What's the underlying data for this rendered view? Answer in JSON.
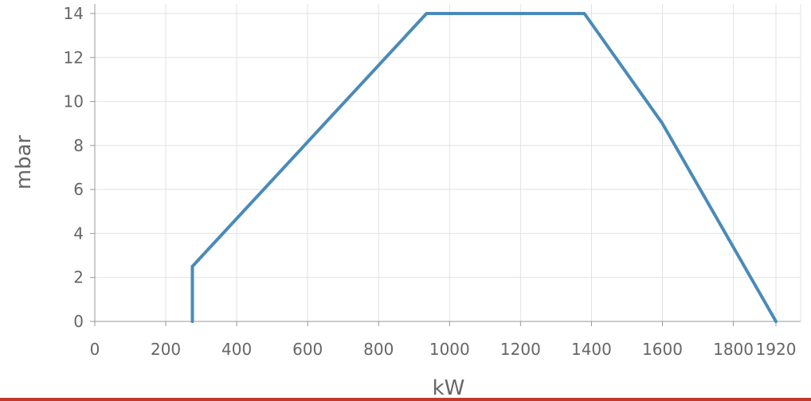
{
  "chart_data": {
    "type": "line",
    "title": "",
    "xlabel": "kW",
    "ylabel": "mbar",
    "xlim": [
      0,
      1920
    ],
    "ylim": [
      0,
      14
    ],
    "x_ticks": [
      "0",
      "200",
      "400",
      "600",
      "800",
      "1000",
      "1200",
      "1400",
      "1600",
      "1800",
      "1920"
    ],
    "y_ticks": [
      "0",
      "2",
      "4",
      "6",
      "8",
      "10",
      "12",
      "14"
    ],
    "grid": true,
    "series": [
      {
        "color": "#4a8ab8",
        "points": [
          [
            275,
            0
          ],
          [
            275,
            2.5
          ],
          [
            935,
            14
          ],
          [
            1380,
            14
          ],
          [
            1600,
            9
          ],
          [
            1920,
            0
          ]
        ]
      }
    ]
  }
}
